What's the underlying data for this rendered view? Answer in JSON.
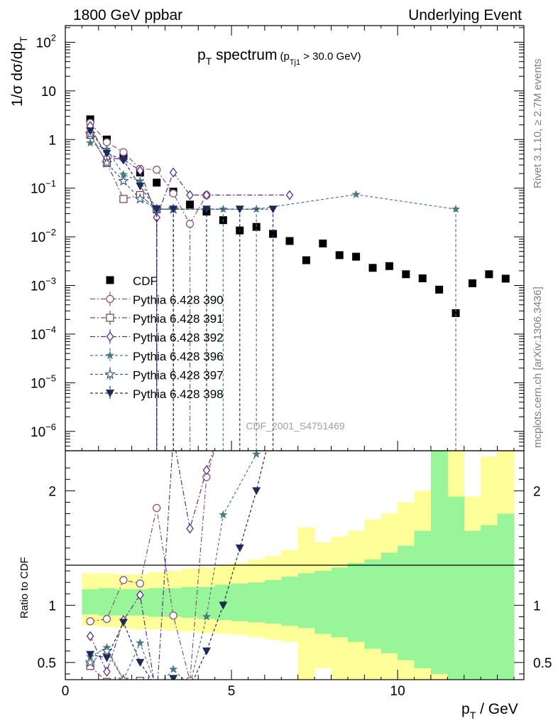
{
  "header": {
    "left": "1800 GeV ppbar",
    "right": "Underlying Event"
  },
  "side": {
    "rivet": "Rivet 3.1.10, ≥ 2.7M events",
    "mcplots": "mcplots.cern.ch [arXiv:1306.3436]"
  },
  "chart_data": [
    {
      "type": "scatter",
      "panel": "main",
      "title_main": "p",
      "title_main_sub": "T",
      "title_rest": " spectrum",
      "title_cut": "(p",
      "title_cut_sub": "Tj1",
      "title_cut_rest": " > 30.0 GeV)",
      "ylabel": "1/σ dσ/dp",
      "ylabel_sub": "T",
      "yscale": "log",
      "xlim": [
        0,
        13.8
      ],
      "ylim": [
        4e-07,
        220
      ],
      "analysis_id": "CDF_2001_S4751469",
      "y_ticks": [
        {
          "base": "10",
          "exp": "2"
        },
        {
          "base": "10",
          "exp": ""
        },
        {
          "base": "1",
          "exp": ""
        },
        {
          "base": "10",
          "exp": "−1"
        },
        {
          "base": "10",
          "exp": "−2"
        },
        {
          "base": "10",
          "exp": "−3"
        },
        {
          "base": "10",
          "exp": "−4"
        },
        {
          "base": "10",
          "exp": "−5"
        },
        {
          "base": "10",
          "exp": "−6"
        }
      ],
      "y_tick_values": [
        100,
        10,
        1,
        0.1,
        0.01,
        0.001,
        0.0001,
        1e-05,
        1e-06
      ],
      "series": [
        {
          "name": "CDF",
          "marker": "square",
          "color": "#000000",
          "dash": "none",
          "x": [
            0.75,
            1.25,
            1.75,
            2.25,
            2.75,
            3.25,
            3.75,
            4.25,
            4.75,
            5.25,
            5.75,
            6.25,
            6.75,
            7.25,
            7.75,
            8.25,
            8.75,
            9.25,
            9.75,
            10.25,
            10.75,
            11.25,
            11.75,
            12.25,
            12.75,
            13.25
          ],
          "y": [
            2.6,
            1.0,
            0.45,
            0.21,
            0.13,
            0.085,
            0.046,
            0.033,
            0.022,
            0.0135,
            0.016,
            0.0115,
            0.0082,
            0.0033,
            0.0073,
            0.0042,
            0.0039,
            0.0023,
            0.0025,
            0.0017,
            0.0014,
            0.00082,
            0.00027,
            0.00111,
            0.0017,
            0.00138
          ]
        },
        {
          "name": "Pythia 6.428 390",
          "marker": "circle-open",
          "color": "#8a5470",
          "dash": "7,3,2,3",
          "x": [
            0.75,
            1.25,
            1.75,
            2.25,
            2.75,
            3.25,
            3.75,
            4.25
          ],
          "y": [
            2.2,
            0.88,
            0.55,
            0.25,
            0.24,
            0.078,
            0.0185,
            0.072
          ]
        },
        {
          "name": "Pythia 6.428 391",
          "marker": "square-open",
          "color": "#7a4a5a",
          "dash": "7,3,2,3",
          "x": [
            0.75,
            1.25,
            1.75,
            2.25,
            2.75
          ],
          "y": [
            1.25,
            0.33,
            0.06,
            0.072,
            0.037
          ]
        },
        {
          "name": "Pythia 6.428 392",
          "marker": "diamond-open",
          "color": "#5a2f8c",
          "dash": "7,3,2,3",
          "x": [
            0.75,
            1.25,
            1.75,
            2.25,
            2.75,
            3.25,
            3.75,
            4.25,
            6.75
          ],
          "y": [
            1.9,
            0.42,
            0.39,
            0.23,
            0.025,
            0.21,
            0.072,
            0.072,
            0.072
          ]
        },
        {
          "name": "Pythia 6.428 396",
          "marker": "star",
          "color": "#4b7a82",
          "dash": "4,3",
          "x": [
            0.75,
            1.25,
            1.75,
            2.25,
            2.75,
            3.25,
            4.75,
            5.75,
            8.75,
            11.75
          ],
          "y": [
            0.85,
            0.63,
            0.19,
            0.14,
            0.037,
            0.037,
            0.037,
            0.037,
            0.074,
            0.037
          ]
        },
        {
          "name": "Pythia 6.428 397",
          "marker": "star-open",
          "color": "#3a5a7a",
          "dash": "4,3",
          "x": [
            0.75,
            1.25,
            1.75,
            2.25,
            2.75,
            3.25
          ],
          "y": [
            1.3,
            0.33,
            0.14,
            0.06,
            0.037,
            0.037
          ]
        },
        {
          "name": "Pythia 6.428 398",
          "marker": "triangle-down",
          "color": "#1e2a5a",
          "dash": "4,3",
          "x": [
            0.75,
            1.25,
            1.75,
            2.25,
            2.75,
            3.25,
            4.25,
            5.25,
            6.25
          ],
          "y": [
            1.5,
            0.52,
            0.38,
            0.11,
            0.037,
            0.037,
            0.037,
            0.037,
            0.037
          ]
        }
      ]
    },
    {
      "type": "area",
      "panel": "ratio",
      "ylabel": "Ratio to CDF",
      "xlabel": "p",
      "xlabel_sub": "T",
      "xlabel_rest": " / GeV",
      "xlim": [
        0,
        13.8
      ],
      "ylim": [
        0.35,
        2.35
      ],
      "x_ticks": [
        0,
        5,
        10
      ],
      "y_ticks": [
        0.5,
        1,
        2
      ],
      "bin_edges": [
        0.5,
        1,
        1.5,
        2,
        2.5,
        3,
        3.5,
        4,
        4.5,
        5,
        5.5,
        6,
        6.5,
        7,
        7.5,
        8,
        8.5,
        9,
        9.5,
        10,
        10.5,
        11,
        11.5,
        12,
        12.5,
        13,
        13.5
      ],
      "band_inner_color": "#99f599",
      "band_outer_color": "#ffff99",
      "green_lo": [
        0.92,
        0.91,
        0.91,
        0.91,
        0.9,
        0.9,
        0.89,
        0.88,
        0.87,
        0.86,
        0.85,
        0.84,
        0.82,
        0.8,
        0.75,
        0.72,
        0.68,
        0.62,
        0.58,
        0.52,
        0.45,
        0.4,
        0.3,
        0.25,
        0.22,
        0.2
      ],
      "green_hi": [
        1.14,
        1.15,
        1.14,
        1.14,
        1.15,
        1.15,
        1.16,
        1.16,
        1.18,
        1.19,
        1.2,
        1.22,
        1.25,
        1.28,
        1.3,
        1.33,
        1.37,
        1.4,
        1.46,
        1.52,
        1.65,
        2.35,
        1.95,
        1.65,
        1.7,
        1.8
      ],
      "yellow_lo": [
        0.82,
        0.81,
        0.8,
        0.79,
        0.79,
        0.78,
        0.77,
        0.76,
        0.75,
        0.74,
        0.72,
        0.7,
        0.68,
        0.3,
        0.45,
        0.35,
        0.3,
        0.3,
        0.3,
        0.3,
        0.3,
        0.3,
        0.3,
        0.3,
        0.3,
        0.3
      ],
      "yellow_hi": [
        1.28,
        1.28,
        1.27,
        1.27,
        1.29,
        1.3,
        1.32,
        1.33,
        1.35,
        1.37,
        1.4,
        1.43,
        1.48,
        1.68,
        1.55,
        1.6,
        1.65,
        1.75,
        1.8,
        1.9,
        2.0,
        2.15,
        2.35,
        1.95,
        2.3,
        2.35
      ],
      "series": [
        {
          "name": "Pythia 6.428 390",
          "x": [
            0.75,
            1.25,
            1.75,
            2.25,
            2.75,
            3.25,
            3.75,
            4.25,
            4.75
          ],
          "y": [
            0.86,
            0.88,
            1.22,
            1.19,
            1.85,
            0.91,
            0.34,
            2.12,
            2.6
          ]
        },
        {
          "name": "Pythia 6.428 391",
          "x": [
            0.75,
            1.25,
            1.75,
            2.25,
            2.75
          ],
          "y": [
            0.47,
            0.33,
            0.13,
            0.34,
            0.28
          ]
        },
        {
          "name": "Pythia 6.428 392",
          "x": [
            0.75,
            1.25,
            1.75,
            2.25,
            2.75,
            3.25,
            3.75,
            4.25,
            4.75
          ],
          "y": [
            0.73,
            0.42,
            0.87,
            1.09,
            0.19,
            2.47,
            1.67,
            2.18,
            2.6
          ]
        },
        {
          "name": "Pythia 6.428 396",
          "x": [
            0.75,
            1.25,
            1.75,
            2.25,
            2.75,
            3.25,
            3.75,
            4.25,
            4.75,
            5.75,
            6.25
          ],
          "y": [
            0.55,
            0.63,
            0.35,
            0.67,
            0.28,
            0.44,
            0.3,
            0.9,
            1.79,
            2.32,
            2.6
          ]
        },
        {
          "name": "Pythia 6.428 397",
          "x": [
            0.75,
            1.25,
            1.75,
            2.25,
            2.75,
            3.25
          ],
          "y": [
            0.5,
            0.6,
            0.35,
            0.28,
            0.28,
            0.28
          ]
        },
        {
          "name": "Pythia 6.428 398",
          "x": [
            0.75,
            1.25,
            1.75,
            2.25,
            2.75,
            3.25,
            3.75,
            4.25,
            4.75,
            5.25,
            5.75,
            6.25
          ],
          "y": [
            0.57,
            0.54,
            0.85,
            0.5,
            0.28,
            0.36,
            0.28,
            0.6,
            1.0,
            1.5,
            2.0,
            2.6
          ]
        }
      ]
    }
  ]
}
